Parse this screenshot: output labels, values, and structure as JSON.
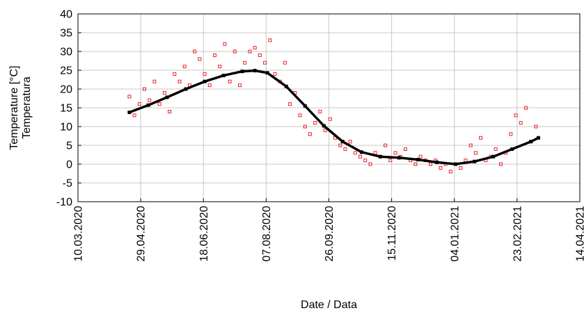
{
  "chart_data": {
    "type": "scatter",
    "xlabel": "Date / Data",
    "ylabel_lines": [
      "Temperature [°C]",
      "Temperatura"
    ],
    "ylim": [
      -10,
      40
    ],
    "yticks": [
      -10,
      -5,
      0,
      5,
      10,
      15,
      20,
      25,
      30,
      35,
      40
    ],
    "xlim": [
      "2020-03-10",
      "2021-04-14"
    ],
    "xticks": [
      "10.03.2020",
      "29.04.2020",
      "18.06.2020",
      "07.08.2020",
      "26.09.2020",
      "15.11.2020",
      "04.01.2021",
      "23.02.2021",
      "14.04.2021"
    ],
    "grid": true,
    "colors": {
      "measured": "#e8232a",
      "fit": "#000000"
    },
    "series": [
      {
        "marker": "open-square",
        "x": [
          "2020-04-20",
          "2020-04-24",
          "2020-04-28",
          "2020-05-02",
          "2020-05-06",
          "2020-05-10",
          "2020-05-14",
          "2020-05-18",
          "2020-05-22",
          "2020-05-26",
          "2020-05-30",
          "2020-06-03",
          "2020-06-07",
          "2020-06-11",
          "2020-06-15",
          "2020-06-19",
          "2020-06-23",
          "2020-06-27",
          "2020-07-01",
          "2020-07-05",
          "2020-07-09",
          "2020-07-13",
          "2020-07-17",
          "2020-07-21",
          "2020-07-25",
          "2020-07-29",
          "2020-08-02",
          "2020-08-06",
          "2020-08-10",
          "2020-08-14",
          "2020-08-18",
          "2020-08-22",
          "2020-08-26",
          "2020-08-30",
          "2020-09-03",
          "2020-09-07",
          "2020-09-11",
          "2020-09-15",
          "2020-09-19",
          "2020-09-23",
          "2020-09-27",
          "2020-10-01",
          "2020-10-05",
          "2020-10-09",
          "2020-10-13",
          "2020-10-17",
          "2020-10-21",
          "2020-10-25",
          "2020-10-29",
          "2020-11-02",
          "2020-11-06",
          "2020-11-10",
          "2020-11-14",
          "2020-11-18",
          "2020-11-22",
          "2020-11-26",
          "2020-11-30",
          "2020-12-04",
          "2020-12-08",
          "2020-12-12",
          "2020-12-16",
          "2020-12-20",
          "2020-12-24",
          "2020-12-28",
          "2021-01-01",
          "2021-01-05",
          "2021-01-09",
          "2021-01-13",
          "2021-01-17",
          "2021-01-21",
          "2021-01-25",
          "2021-01-29",
          "2021-02-02",
          "2021-02-06",
          "2021-02-10",
          "2021-02-14",
          "2021-02-18",
          "2021-02-22",
          "2021-02-26",
          "2021-03-02",
          "2021-03-06",
          "2021-03-10"
        ],
        "y": [
          18,
          13,
          16,
          20,
          17,
          22,
          16,
          19,
          14,
          24,
          22,
          26,
          21,
          30,
          28,
          24,
          21,
          29,
          26,
          32,
          22,
          30,
          21,
          27,
          30,
          31,
          29,
          27,
          33,
          24,
          22,
          27,
          16,
          19,
          13,
          10,
          8,
          11,
          14,
          9,
          12,
          7,
          5,
          4,
          6,
          3,
          2,
          1,
          0,
          3,
          2,
          5,
          1,
          3,
          2,
          4,
          1,
          0,
          2,
          1,
          0,
          1,
          -1,
          0,
          -2,
          0,
          -1,
          1,
          5,
          3,
          7,
          1,
          2,
          4,
          0,
          3,
          8,
          13,
          11,
          15,
          6,
          10
        ]
      },
      {
        "marker": "filled-square",
        "x": [
          "2020-04-20",
          "2020-05-05",
          "2020-05-20",
          "2020-06-04",
          "2020-06-19",
          "2020-07-04",
          "2020-07-19",
          "2020-07-29",
          "2020-08-08",
          "2020-08-23",
          "2020-09-07",
          "2020-09-22",
          "2020-10-07",
          "2020-10-22",
          "2020-11-06",
          "2020-11-21",
          "2020-12-06",
          "2020-12-21",
          "2021-01-05",
          "2021-01-20",
          "2021-02-04",
          "2021-02-19",
          "2021-03-06",
          "2021-03-12"
        ],
        "y": [
          13.8,
          15.7,
          17.8,
          20.0,
          22.0,
          23.6,
          24.7,
          24.9,
          24.3,
          20.7,
          15.5,
          10.2,
          6.0,
          3.2,
          2.0,
          1.7,
          1.2,
          0.5,
          0.0,
          0.7,
          2.0,
          4.0,
          6.0,
          7.0
        ]
      }
    ]
  }
}
